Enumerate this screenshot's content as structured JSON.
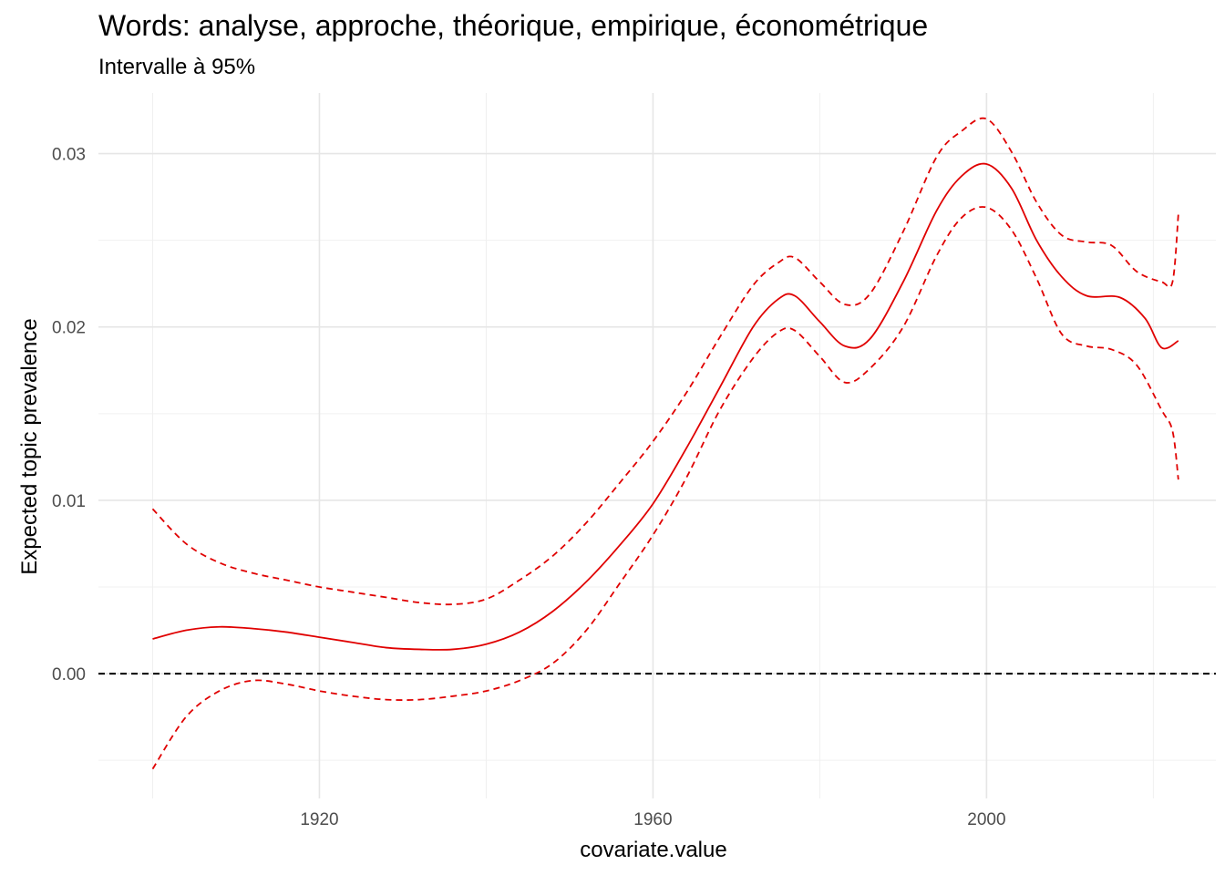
{
  "chart_data": {
    "type": "line",
    "title": "Words: analyse, approche, théorique, empirique, économétrique",
    "subtitle": "Intervalle à 95%",
    "xlabel": "covariate.value",
    "ylabel": "Expected topic prevalence",
    "xlim": [
      1893.5,
      2027.5
    ],
    "ylim": [
      -0.0072,
      0.0335
    ],
    "x_ticks": [
      1920,
      1960,
      2000
    ],
    "x_tick_labels": [
      "1920",
      "1960",
      "2000"
    ],
    "y_ticks": [
      0.0,
      0.01,
      0.02,
      0.03
    ],
    "y_tick_labels": [
      "0.00",
      "0.01",
      "0.02",
      "0.03"
    ],
    "grid": true,
    "reference_line": {
      "y": 0.0,
      "style": "dashed",
      "color": "#000000"
    },
    "series": [
      {
        "role": "estimate",
        "style": "solid",
        "color": "#e00000",
        "x": [
          1900,
          1904,
          1908,
          1912,
          1916,
          1920,
          1924,
          1928,
          1932,
          1936,
          1940,
          1944,
          1948,
          1952,
          1956,
          1960,
          1964,
          1968,
          1972,
          1975,
          1977,
          1980,
          1983,
          1986,
          1990,
          1994,
          1997,
          2000,
          2003,
          2006,
          2009,
          2012,
          2016,
          2019,
          2021,
          2023
        ],
        "y": [
          0.002,
          0.0025,
          0.0027,
          0.0026,
          0.0024,
          0.0021,
          0.0018,
          0.0015,
          0.0014,
          0.0014,
          0.0017,
          0.0024,
          0.0036,
          0.0053,
          0.0074,
          0.0098,
          0.013,
          0.0165,
          0.02,
          0.0216,
          0.0218,
          0.0203,
          0.0189,
          0.0193,
          0.0226,
          0.0267,
          0.0287,
          0.0294,
          0.028,
          0.025,
          0.0229,
          0.0218,
          0.0217,
          0.0205,
          0.0188,
          0.0192
        ]
      },
      {
        "role": "upper 95%",
        "style": "dashed",
        "color": "#e00000",
        "x": [
          1900,
          1904,
          1908,
          1912,
          1916,
          1920,
          1924,
          1928,
          1932,
          1936,
          1940,
          1944,
          1948,
          1952,
          1956,
          1960,
          1964,
          1968,
          1972,
          1975,
          1977,
          1980,
          1983,
          1986,
          1990,
          1994,
          1997,
          2000,
          2003,
          2006,
          2009,
          2012,
          2015,
          2018,
          2021,
          2022.3,
          2023
        ],
        "y": [
          0.0095,
          0.0075,
          0.0064,
          0.0058,
          0.0054,
          0.005,
          0.0047,
          0.0044,
          0.0041,
          0.004,
          0.0043,
          0.0054,
          0.0068,
          0.0087,
          0.011,
          0.0134,
          0.0162,
          0.0194,
          0.0224,
          0.0237,
          0.024,
          0.0226,
          0.0213,
          0.0219,
          0.0255,
          0.0298,
          0.0313,
          0.032,
          0.0301,
          0.0272,
          0.0253,
          0.0249,
          0.0247,
          0.0232,
          0.0226,
          0.0226,
          0.0265
        ]
      },
      {
        "role": "lower 95%",
        "style": "dashed",
        "color": "#e00000",
        "x": [
          1900,
          1904,
          1908,
          1912,
          1916,
          1920,
          1924,
          1928,
          1932,
          1936,
          1940,
          1944,
          1948,
          1952,
          1956,
          1960,
          1964,
          1968,
          1972,
          1975,
          1977,
          1980,
          1983,
          1986,
          1990,
          1994,
          1997,
          2000,
          2003,
          2006,
          2009,
          2012,
          2015,
          2018,
          2021,
          2022.3,
          2023
        ],
        "y": [
          -0.0055,
          -0.0025,
          -0.001,
          -0.0004,
          -0.0006,
          -0.001,
          -0.0013,
          -0.0015,
          -0.0015,
          -0.0013,
          -0.001,
          -0.0004,
          0.0006,
          0.0025,
          0.0052,
          0.008,
          0.0113,
          0.0152,
          0.0182,
          0.0197,
          0.0198,
          0.0183,
          0.0168,
          0.0176,
          0.02,
          0.0241,
          0.0263,
          0.0269,
          0.0256,
          0.0228,
          0.0196,
          0.0189,
          0.0187,
          0.0178,
          0.0152,
          0.014,
          0.0112
        ]
      }
    ]
  }
}
